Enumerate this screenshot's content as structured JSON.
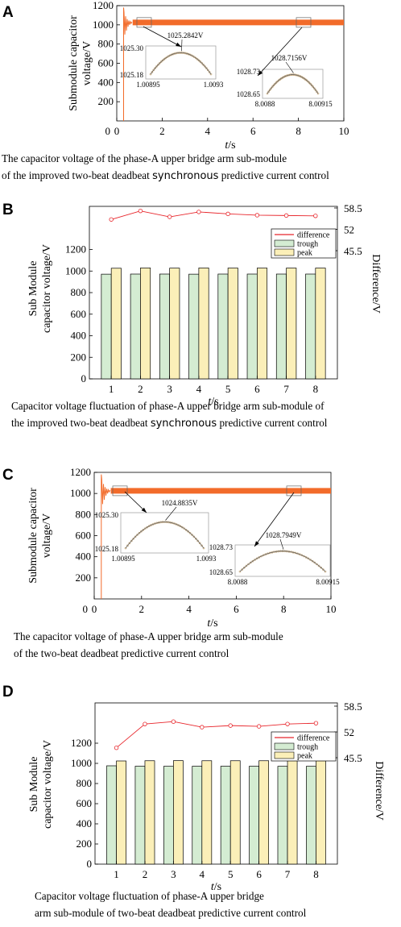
{
  "panels": {
    "A": {
      "letter": "A",
      "caption_line1": "The capacitor voltage of the phase-A upper bridge arm sub-module",
      "caption_line2": "of the improved two-beat deadbeat synchronous predictive current control",
      "chart_data": {
        "type": "line",
        "title": "",
        "xlabel": "t/s",
        "ylabel": "Submodule capacitor voltage/V",
        "xlim": [
          0,
          10
        ],
        "ylim": [
          0,
          1200
        ],
        "x_ticks": [
          "0",
          "2",
          "4",
          "6",
          "8",
          "10"
        ],
        "y_ticks": [
          "200",
          "400",
          "600",
          "800",
          "1000",
          "1200"
        ],
        "steady_value": 1025,
        "insets": [
          {
            "y_top": "1025.30",
            "y_bottom": "1025.18",
            "x_left": "1.00895",
            "x_right": "1.0093",
            "peak_label": "1025.2842V"
          },
          {
            "y_top": "1028.73",
            "y_bottom": "1028.65",
            "x_left": "8.0088",
            "x_right": "8.00915",
            "peak_label": "1028.7156V"
          }
        ]
      }
    },
    "B": {
      "letter": "B",
      "caption_line1": "Capacitor voltage fluctuation of phase-A upper bridge arm sub-module of",
      "caption_line2": "the improved two-beat deadbeat synchronous predictive current control",
      "chart_data": {
        "type": "bar",
        "xlabel": "t/s",
        "ylabel": "Sub Module capacitor voltage/V",
        "ylabel_right": "Difference/V",
        "categories": [
          "1",
          "2",
          "3",
          "4",
          "5",
          "6",
          "7",
          "8"
        ],
        "ylim": [
          0,
          1600
        ],
        "y_ticks": [
          "0",
          "200",
          "400",
          "600",
          "800",
          "1000",
          "1200"
        ],
        "y2_ticks": [
          "45.5",
          "52",
          "58.5"
        ],
        "y2lim": [
          45.5,
          58.5
        ],
        "series": [
          {
            "name": "trough",
            "values": [
              971,
              972,
              972,
              971,
              972,
              972,
              972,
              972
            ]
          },
          {
            "name": "peak",
            "values": [
              1026,
              1029,
              1027,
              1029,
              1028,
              1028,
              1028,
              1028
            ]
          },
          {
            "name": "difference",
            "values": [
              55,
              57.6,
              55.8,
              57.3,
              56.7,
              56.3,
              56.2,
              56.1
            ]
          }
        ],
        "legend": "top-right"
      }
    },
    "C": {
      "letter": "C",
      "caption_line1": "The capacitor voltage of phase-A upper bridge arm sub-module",
      "caption_line2": "of the two-beat deadbeat predictive current control",
      "chart_data": {
        "type": "line",
        "xlabel": "t/s",
        "ylabel": "Submodule capacitor voltage/V",
        "xlim": [
          0,
          10
        ],
        "ylim": [
          0,
          1200
        ],
        "x_ticks": [
          "0",
          "2",
          "4",
          "6",
          "8",
          "10"
        ],
        "y_ticks": [
          "200",
          "400",
          "600",
          "800",
          "1000",
          "1200"
        ],
        "steady_value": 1025,
        "insets": [
          {
            "y_top": "1025.30",
            "y_bottom": "1025.18",
            "x_left": "1.00895",
            "x_right": "1.0093",
            "peak_label": "1024.8835V"
          },
          {
            "y_top": "1028.73",
            "y_bottom": "1028.65",
            "x_left": "8.0088",
            "x_right": "8.00915",
            "peak_label": "1028.7949V"
          }
        ]
      }
    },
    "D": {
      "letter": "D",
      "caption_line1": "Capacitor voltage fluctuation of phase-A upper bridge",
      "caption_line2": "arm sub-module of two-beat deadbeat predictive  current control",
      "chart_data": {
        "type": "bar",
        "xlabel": "t/s",
        "ylabel": "Sub Module capacitor voltage/V",
        "ylabel_right": "Difference/V",
        "categories": [
          "1",
          "2",
          "3",
          "4",
          "5",
          "6",
          "7",
          "8"
        ],
        "ylim": [
          0,
          1600
        ],
        "y_ticks": [
          "0",
          "200",
          "400",
          "600",
          "800",
          "1000",
          "1200"
        ],
        "y2_ticks": [
          "45.5",
          "52",
          "58.5"
        ],
        "y2lim": [
          45.5,
          58.5
        ],
        "series": [
          {
            "name": "trough",
            "values": [
              976,
              972,
              971,
              972,
              972,
              972,
              971,
              971
            ]
          },
          {
            "name": "peak",
            "values": [
              1024,
              1026,
              1027,
              1026,
              1026,
              1026,
              1026,
              1026
            ]
          },
          {
            "name": "difference",
            "values": [
              48,
              54,
              54.6,
              53.2,
              53.6,
              53.4,
              54,
              54.2
            ]
          }
        ],
        "legend": "top-right"
      }
    }
  },
  "colors": {
    "line": "#f26b2a",
    "trough": "#d4ecd2",
    "peak": "#fbefb8",
    "difference": "#e8262c",
    "axis": "#000000"
  }
}
